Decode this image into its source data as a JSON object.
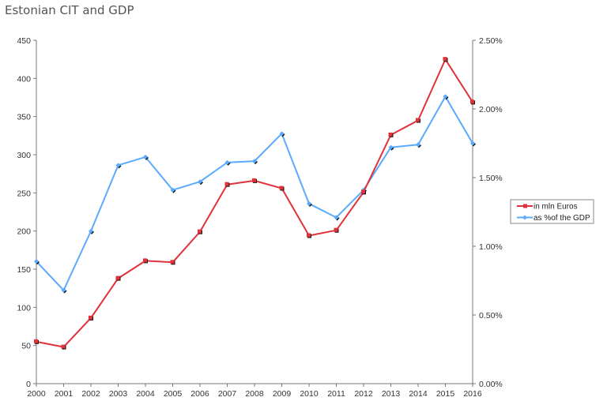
{
  "chart_data": {
    "type": "line",
    "title": "Estonian CIT and GDP",
    "categories": [
      "2000",
      "2001",
      "2002",
      "2003",
      "2004",
      "2005",
      "2006",
      "2007",
      "2008",
      "2009",
      "2010",
      "2011",
      "2012",
      "2013",
      "2014",
      "2015",
      "2016"
    ],
    "series": [
      {
        "name": "in mln Euros",
        "axis": "left",
        "color": "#e0323a",
        "values": [
          55,
          48,
          86,
          138,
          161,
          159,
          199,
          261,
          266,
          256,
          194,
          201,
          251,
          326,
          345,
          425,
          369
        ]
      },
      {
        "name": "as %of the GDP",
        "axis": "right",
        "color": "#5aaaff",
        "values": [
          0.89,
          0.68,
          1.11,
          1.59,
          1.65,
          1.41,
          1.47,
          1.61,
          1.62,
          1.82,
          1.31,
          1.21,
          1.41,
          1.72,
          1.74,
          2.09,
          1.75
        ]
      }
    ],
    "left_axis": {
      "ylim": [
        0,
        450
      ],
      "ticks": [
        "0",
        "50",
        "100",
        "150",
        "200",
        "250",
        "300",
        "350",
        "400",
        "450"
      ]
    },
    "right_axis": {
      "ylim": [
        0,
        2.5
      ],
      "ticks": [
        "0.00%",
        "0.50%",
        "1.00%",
        "1.50%",
        "2.00%",
        "2.50%"
      ]
    },
    "grid": false,
    "legend": "right"
  }
}
